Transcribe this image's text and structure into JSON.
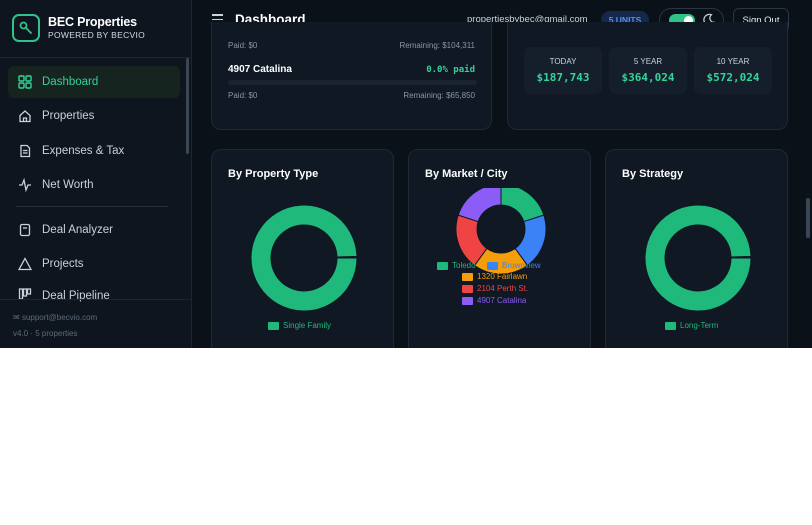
{
  "brand": {
    "title": "BEC Properties",
    "subtitle": "POWERED BY BECVIO"
  },
  "sidebar": {
    "items": [
      {
        "label": "Dashboard",
        "icon": "dashboard-grid-icon",
        "active": true
      },
      {
        "label": "Properties",
        "icon": "home-icon"
      },
      {
        "label": "Expenses & Tax",
        "icon": "document-icon"
      },
      {
        "label": "Net Worth",
        "icon": "pulse-icon"
      },
      {
        "label": "Deal Analyzer",
        "icon": "clipboard-icon"
      },
      {
        "label": "Projects",
        "icon": "warning-triangle-icon"
      },
      {
        "label": "Deal Pipeline",
        "icon": "pipeline-icon"
      }
    ],
    "footer": {
      "support": "support@becvio.com",
      "version": "v4.0 · 5 properties"
    }
  },
  "header": {
    "title": "Dashboard",
    "email": "propertiesbybec@gmail.com",
    "units_badge": "5 UNITS",
    "signout": "Sign Out"
  },
  "payoff": {
    "row1": {
      "paid": "Paid: $0",
      "remaining": "Remaining: $104,311"
    },
    "row2": {
      "name": "4907 Catalina",
      "pct": "0.0% paid",
      "paid": "Paid: $0",
      "remaining": "Remaining: $65,850"
    }
  },
  "projection": [
    {
      "label": "TODAY",
      "value": "$187,743"
    },
    {
      "label": "5 YEAR",
      "value": "$364,024"
    },
    {
      "label": "10 YEAR",
      "value": "$572,024"
    }
  ],
  "chart_data": [
    {
      "type": "pie",
      "title": "By Property Type",
      "slices": [
        {
          "label": "Single Family",
          "value": 100,
          "color": "#1fb97c"
        }
      ]
    },
    {
      "type": "pie",
      "title": "By Market / City",
      "slices": [
        {
          "label": "Toledo",
          "value": 20,
          "color": "#1fb97c"
        },
        {
          "label": "Brownview",
          "value": 20,
          "color": "#3b82f6"
        },
        {
          "label": "1320 Fairlawn",
          "value": 20,
          "color": "#f59e0b"
        },
        {
          "label": "2104 Perth St.",
          "value": 20,
          "color": "#ef4444"
        },
        {
          "label": "4907 Catalina",
          "value": 20,
          "color": "#8b5cf6"
        }
      ]
    },
    {
      "type": "pie",
      "title": "By Strategy",
      "slices": [
        {
          "label": "Long-Term",
          "value": 100,
          "color": "#1fb97c"
        }
      ]
    }
  ]
}
